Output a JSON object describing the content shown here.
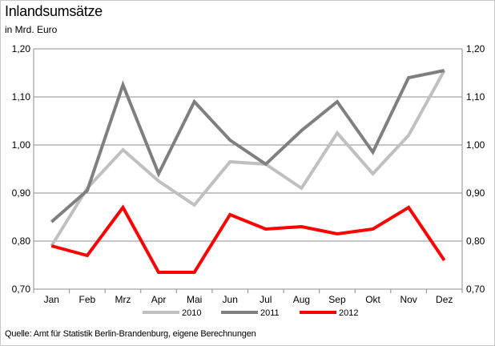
{
  "chart_data": {
    "type": "line",
    "title": "Inlandsumsätze",
    "subtitle": "in Mrd. Euro",
    "source": "Quelle: Amt für Statistik Berlin-Brandenburg, eigene Berechnungen",
    "categories": [
      "Jan",
      "Feb",
      "Mrz",
      "Apr",
      "Mai",
      "Jun",
      "Jul",
      "Aug",
      "Sep",
      "Okt",
      "Nov",
      "Dez"
    ],
    "ylim": [
      0.7,
      1.2
    ],
    "yticks": [
      "0,70",
      "0,80",
      "0,90",
      "1,00",
      "1,10",
      "1,20"
    ],
    "grid": true,
    "legend_position": "bottom",
    "series": [
      {
        "name": "2010",
        "color": "#c0c0c0",
        "values": [
          0.79,
          0.91,
          0.99,
          0.925,
          0.875,
          0.965,
          0.96,
          0.91,
          1.025,
          0.94,
          1.02,
          1.155
        ]
      },
      {
        "name": "2011",
        "color": "#7f7f7f",
        "values": [
          0.84,
          0.905,
          1.125,
          0.94,
          1.09,
          1.01,
          0.96,
          1.03,
          1.09,
          0.985,
          1.14,
          1.155
        ]
      },
      {
        "name": "2012",
        "color": "#ff0000",
        "values": [
          0.79,
          0.77,
          0.87,
          0.735,
          0.735,
          0.855,
          0.825,
          0.83,
          0.815,
          0.825,
          0.87,
          0.76
        ]
      }
    ]
  }
}
